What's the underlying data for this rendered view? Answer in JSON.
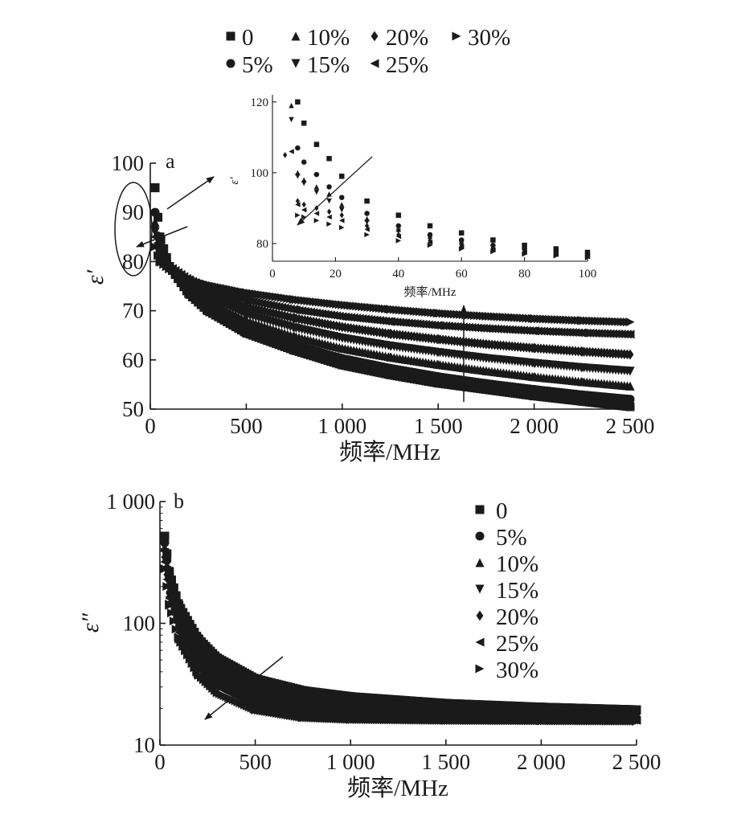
{
  "figure": {
    "panel_a_label": "a",
    "panel_b_label": "b",
    "inset_ylabel": "ε′"
  },
  "chart_data": [
    {
      "id": "panel-a",
      "type": "scatter",
      "title": "",
      "xlabel": "频率/MHz",
      "ylabel": "ε′",
      "xlim": [
        0,
        2500
      ],
      "ylim": [
        50,
        100
      ],
      "xticks": [
        0,
        500,
        1000,
        1500,
        2000,
        2500
      ],
      "xtick_labels": [
        "0",
        "500",
        "1 000",
        "1 500",
        "2 000",
        "2 500"
      ],
      "yticks": [
        50,
        60,
        70,
        80,
        90,
        100
      ],
      "ytick_labels": [
        "50",
        "60",
        "70",
        "80",
        "90",
        "100"
      ],
      "grid": false,
      "legend_position": "top",
      "legend": [
        "0",
        "5%",
        "10%",
        "15%",
        "20%",
        "25%",
        "30%"
      ],
      "series": [
        {
          "name": "0",
          "marker": "square",
          "x": [
            25,
            50,
            100,
            200,
            300,
            500,
            750,
            1000,
            1250,
            1500,
            1750,
            2000,
            2250,
            2500
          ],
          "y": [
            95,
            85,
            79,
            73.5,
            70,
            65.5,
            62,
            59,
            57,
            55.3,
            54,
            52.7,
            51.6,
            50.5
          ]
        },
        {
          "name": "5%",
          "marker": "circle",
          "x": [
            25,
            50,
            100,
            200,
            300,
            500,
            750,
            1000,
            1250,
            1500,
            1750,
            2000,
            2250,
            2500
          ],
          "y": [
            90,
            82,
            79,
            74,
            71,
            66.5,
            63,
            60.3,
            58.3,
            56.6,
            55.2,
            54,
            52.9,
            52
          ]
        },
        {
          "name": "10%",
          "marker": "triangle-up",
          "x": [
            25,
            50,
            100,
            200,
            300,
            500,
            750,
            1000,
            1250,
            1500,
            1750,
            2000,
            2250,
            2500
          ],
          "y": [
            88,
            81.5,
            79,
            74.7,
            72,
            68,
            64.8,
            62.4,
            60.6,
            59.1,
            57.8,
            56.6,
            55.6,
            54.7
          ]
        },
        {
          "name": "15%",
          "marker": "triangle-down",
          "x": [
            25,
            50,
            100,
            200,
            300,
            500,
            750,
            1000,
            1250,
            1500,
            1750,
            2000,
            2250,
            2500
          ],
          "y": [
            86,
            81,
            78.5,
            75,
            72.7,
            69.2,
            66.5,
            64.4,
            62.8,
            61.5,
            60.3,
            59.3,
            58.4,
            57.7
          ]
        },
        {
          "name": "20%",
          "marker": "diamond",
          "x": [
            25,
            50,
            100,
            200,
            300,
            500,
            750,
            1000,
            1250,
            1500,
            1750,
            2000,
            2250,
            2500
          ],
          "y": [
            87,
            81.5,
            79,
            75.8,
            73.8,
            70.8,
            68.5,
            66.7,
            65.3,
            64.2,
            63.2,
            62.4,
            61.7,
            61.1
          ]
        },
        {
          "name": "25%",
          "marker": "triangle-left",
          "x": [
            25,
            50,
            100,
            200,
            300,
            500,
            750,
            1000,
            1250,
            1500,
            1750,
            2000,
            2250,
            2500
          ],
          "y": [
            85,
            81,
            79,
            76.3,
            74.6,
            72.1,
            70.2,
            68.8,
            67.8,
            67,
            66.4,
            65.9,
            65.5,
            65.2
          ]
        },
        {
          "name": "30%",
          "marker": "triangle-right",
          "x": [
            25,
            50,
            100,
            200,
            300,
            500,
            750,
            1000,
            1250,
            1500,
            1750,
            2000,
            2250,
            2500
          ],
          "y": [
            83,
            80,
            78.5,
            76.5,
            75.3,
            73.7,
            72.3,
            71.2,
            70.3,
            69.5,
            68.9,
            68.4,
            68,
            67.7
          ]
        }
      ],
      "annotations": [
        "ellipse around low-frequency points",
        "arrow toward inset",
        "upward trend arrow at ~1640 MHz"
      ]
    },
    {
      "id": "panel-a-inset",
      "type": "scatter",
      "title": "",
      "xlabel": "频率/MHz",
      "ylabel": "ε′",
      "xlim": [
        0,
        100
      ],
      "ylim": [
        75,
        122
      ],
      "xticks": [
        0,
        20,
        40,
        60,
        80,
        100
      ],
      "xtick_labels": [
        "0",
        "20",
        "40",
        "60",
        "80",
        "100"
      ],
      "yticks": [
        80,
        100,
        120
      ],
      "ytick_labels": [
        "80",
        "100",
        "120"
      ],
      "grid": false,
      "series": [
        {
          "name": "0",
          "marker": "square",
          "x": [
            8,
            10,
            14,
            18,
            22,
            30,
            40,
            50,
            60,
            70,
            80,
            90,
            100
          ],
          "y": [
            120,
            114,
            108,
            104,
            99,
            92,
            88,
            85,
            83,
            81,
            79.5,
            78.5,
            77.5
          ]
        },
        {
          "name": "5%",
          "marker": "circle",
          "x": [
            8,
            10,
            14,
            18,
            22,
            30,
            40,
            50,
            60,
            70,
            80,
            90,
            100
          ],
          "y": [
            107,
            103,
            99.5,
            96,
            93,
            88.5,
            85,
            82.5,
            81,
            79.5,
            78.5,
            77.5,
            76.8
          ]
        },
        {
          "name": "10%",
          "marker": "triangle-up",
          "x": [
            6,
            8,
            10,
            14,
            18,
            22,
            30,
            40,
            50,
            60,
            70,
            80,
            90,
            100
          ],
          "y": [
            119,
            100,
            98,
            96,
            94,
            91,
            87,
            84,
            82,
            80.5,
            79.2,
            78.2,
            77.4,
            76.7
          ]
        },
        {
          "name": "15%",
          "marker": "triangle-down",
          "x": [
            6,
            8,
            10,
            14,
            18,
            22,
            30,
            40,
            50,
            60,
            70,
            80,
            90,
            100
          ],
          "y": [
            115,
            99,
            97,
            94.5,
            92,
            89.5,
            86,
            83.5,
            81.5,
            80,
            78.8,
            77.9,
            77.1,
            76.5
          ]
        },
        {
          "name": "20%",
          "marker": "diamond",
          "x": [
            4,
            8,
            10,
            14,
            18,
            22,
            30,
            40,
            50,
            60,
            70,
            80,
            90,
            100
          ],
          "y": [
            105,
            92,
            91,
            90,
            89,
            88,
            85,
            82.5,
            80.8,
            79.5,
            78.5,
            77.7,
            77,
            76.4
          ]
        },
        {
          "name": "25%",
          "marker": "triangle-left",
          "x": [
            6,
            8,
            10,
            14,
            18,
            22,
            30,
            40,
            50,
            60,
            70,
            80,
            90,
            100
          ],
          "y": [
            106,
            91,
            89.5,
            88.5,
            87.5,
            86.5,
            84,
            82,
            80.3,
            79.1,
            78.2,
            77.5,
            76.9,
            76.3
          ]
        },
        {
          "name": "30%",
          "marker": "triangle-right",
          "x": [
            8,
            10,
            14,
            18,
            22,
            30,
            40,
            50,
            60,
            70,
            80,
            90,
            100
          ],
          "y": [
            88,
            87.5,
            86.5,
            85.5,
            84.5,
            82.5,
            80.8,
            79.5,
            78.5,
            77.7,
            77,
            76.5,
            76
          ]
        }
      ]
    },
    {
      "id": "panel-b",
      "type": "scatter",
      "title": "",
      "xlabel": "频率/MHz",
      "ylabel": "ε″",
      "yscale": "log",
      "xlim": [
        0,
        2500
      ],
      "ylim": [
        10,
        1000
      ],
      "xticks": [
        0,
        500,
        1000,
        1500,
        2000,
        2500
      ],
      "xtick_labels": [
        "0",
        "500",
        "1 000",
        "1 500",
        "2 000",
        "2 500"
      ],
      "yticks": [
        10,
        100,
        1000
      ],
      "ytick_labels": [
        "10",
        "100",
        "1 000"
      ],
      "grid": false,
      "legend_position": "top-right",
      "legend": [
        "0",
        "5%",
        "10%",
        "15%",
        "20%",
        "25%",
        "30%"
      ],
      "series": [
        {
          "name": "0",
          "marker": "square",
          "x": [
            25,
            50,
            100,
            200,
            300,
            500,
            750,
            1000,
            1500,
            2000,
            2500
          ],
          "y": [
            520,
            260,
            140,
            75,
            52,
            35,
            28,
            25,
            22,
            20.5,
            19.5
          ]
        },
        {
          "name": "5%",
          "marker": "circle",
          "x": [
            25,
            50,
            100,
            200,
            300,
            500,
            750,
            1000,
            1500,
            2000,
            2500
          ],
          "y": [
            460,
            230,
            122,
            66,
            46,
            31,
            25,
            22.5,
            20,
            19,
            18.5
          ]
        },
        {
          "name": "10%",
          "marker": "triangle-up",
          "x": [
            25,
            50,
            100,
            200,
            300,
            500,
            750,
            1000,
            1500,
            2000,
            2500
          ],
          "y": [
            420,
            210,
            110,
            59,
            41,
            28,
            22.5,
            20.5,
            19,
            18.3,
            18
          ]
        },
        {
          "name": "15%",
          "marker": "triangle-down",
          "x": [
            25,
            50,
            100,
            200,
            300,
            500,
            750,
            1000,
            1500,
            2000,
            2500
          ],
          "y": [
            380,
            190,
            100,
            53,
            37,
            25,
            20.5,
            19,
            18,
            17.5,
            17.3
          ]
        },
        {
          "name": "20%",
          "marker": "diamond",
          "x": [
            25,
            50,
            100,
            200,
            300,
            500,
            750,
            1000,
            1500,
            2000,
            2500
          ],
          "y": [
            350,
            175,
            92,
            48,
            33,
            23,
            19,
            18,
            17.2,
            16.8,
            16.6
          ]
        },
        {
          "name": "25%",
          "marker": "triangle-left",
          "x": [
            25,
            50,
            100,
            200,
            300,
            500,
            750,
            1000,
            1500,
            2000,
            2500
          ],
          "y": [
            320,
            160,
            84,
            43,
            30,
            21,
            17.8,
            17,
            16.5,
            16.2,
            16
          ]
        },
        {
          "name": "30%",
          "marker": "triangle-right",
          "x": [
            25,
            50,
            100,
            200,
            300,
            500,
            750,
            1000,
            1500,
            2000,
            2500
          ],
          "y": [
            280,
            140,
            74,
            38,
            27,
            19.5,
            16.8,
            16.2,
            15.9,
            15.8,
            15.7
          ]
        }
      ],
      "annotations": [
        "downward trend arrow near 250–650 MHz"
      ]
    }
  ]
}
